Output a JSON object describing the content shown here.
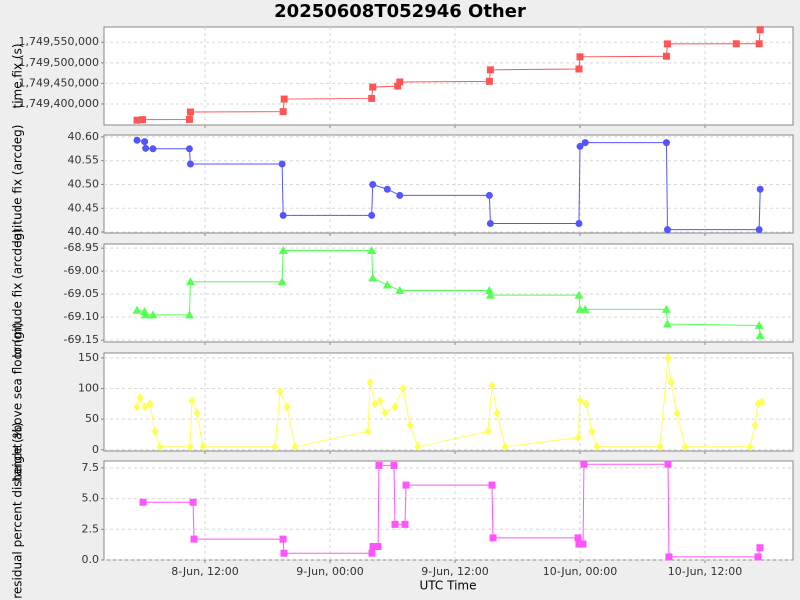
{
  "title": "20250608T052946 Other",
  "xlabel": "UTC Time",
  "xlim": [
    2.3,
    68.45
  ],
  "xticks": [
    {
      "value": 12,
      "label": "8-Jun, 12:00"
    },
    {
      "value": 24,
      "label": "9-Jun, 00:00"
    },
    {
      "value": 36,
      "label": "9-Jun, 12:00"
    },
    {
      "value": 48,
      "label": "10-Jun, 00:00"
    },
    {
      "value": 60,
      "label": "10-Jun, 12:00"
    }
  ],
  "grid": true,
  "chart_data": [
    {
      "type": "line",
      "ylabel": "time fix (s)",
      "marker": "square",
      "ylim": [
        1749349000,
        1749587000
      ],
      "yticks": [
        {
          "value": 1749400000,
          "label": "1,749,400,000"
        },
        {
          "value": 1749450000,
          "label": "1,749,450,000"
        },
        {
          "value": 1749500000,
          "label": "1,749,500,000"
        },
        {
          "value": 1749550000,
          "label": "1,749,550,000"
        }
      ],
      "x": [
        5.47,
        6.0,
        10.5,
        10.6,
        19.5,
        19.6,
        28.0,
        28.1,
        30.5,
        30.7,
        39.3,
        39.4,
        47.9,
        48.0,
        56.3,
        56.4,
        63.0,
        65.2,
        65.3
      ],
      "series": [
        {
          "name": "time fix",
          "color": "#ff5555",
          "values": [
            1749360586,
            1749362000,
            1749362500,
            1749380500,
            1749381500,
            1749412000,
            1749413500,
            1749441000,
            1749443500,
            1749453500,
            1749455000,
            1749483000,
            1749485000,
            1749514600,
            1749516000,
            1749546000,
            1749546300,
            1749546300,
            1749580500
          ]
        }
      ]
    },
    {
      "type": "line",
      "ylabel": "latitude fix (arcdeg)",
      "marker": "circle",
      "ylim": [
        40.398,
        40.604
      ],
      "yticks": [
        {
          "value": 40.4,
          "label": "40.40"
        },
        40.45,
        {
          "value": 40.5,
          "label": "40.50"
        },
        40.55,
        {
          "value": 40.6,
          "label": "40.60"
        }
      ],
      "x": [
        5.47,
        6.2,
        6.3,
        7.0,
        10.5,
        10.6,
        19.4,
        19.5,
        28.0,
        28.1,
        29.5,
        30.7,
        39.3,
        39.4,
        47.9,
        48.0,
        48.5,
        56.3,
        56.4,
        65.2,
        65.3
      ],
      "series": [
        {
          "name": "latitude fix",
          "color": "#5555ff",
          "values": [
            40.593,
            40.59,
            40.576,
            40.575,
            40.575,
            40.543,
            40.543,
            40.435,
            40.435,
            40.5,
            40.49,
            40.477,
            40.477,
            40.418,
            40.418,
            40.58,
            40.588,
            40.588,
            40.405,
            40.405,
            40.49
          ]
        }
      ]
    },
    {
      "type": "line",
      "ylabel": "longitude fix (arcdeg)",
      "marker": "triangle",
      "ylim": [
        -69.154,
        -68.941
      ],
      "yticks": [
        -69.15,
        {
          "value": -69.1,
          "label": "-69.10"
        },
        -69.05,
        {
          "value": -69.0,
          "label": "-69.00"
        },
        -68.95
      ],
      "x": [
        5.47,
        6.2,
        6.3,
        7.0,
        10.5,
        10.6,
        19.4,
        19.5,
        28.0,
        28.1,
        29.5,
        30.7,
        39.3,
        39.4,
        47.9,
        48.0,
        48.5,
        56.3,
        56.4,
        65.2,
        65.3
      ],
      "series": [
        {
          "name": "longitude fix",
          "color": "#55ff55",
          "values": [
            -69.085,
            -69.088,
            -69.095,
            -69.095,
            -69.095,
            -69.023,
            -69.023,
            -68.955,
            -68.955,
            -69.015,
            -69.03,
            -69.042,
            -69.042,
            -69.052,
            -69.052,
            -69.083,
            -69.083,
            -69.083,
            -69.115,
            -69.118,
            -69.14
          ]
        }
      ]
    },
    {
      "type": "line",
      "ylabel": "height above sea floor (m)",
      "marker": "diamond",
      "ylim": [
        -2,
        158
      ],
      "yticks": [
        0,
        50,
        100,
        150
      ],
      "x": [
        5.47,
        5.76,
        6.24,
        6.72,
        7.2,
        7.68,
        10.56,
        10.75,
        11.23,
        11.81,
        18.72,
        19.2,
        19.87,
        20.64,
        27.65,
        27.84,
        28.32,
        28.8,
        29.28,
        30.24,
        31.01,
        31.68,
        32.45,
        39.17,
        39.55,
        40.03,
        40.8,
        47.81,
        48.0,
        48.58,
        49.15,
        49.63,
        55.68,
        56.45,
        56.74,
        57.31,
        58.08,
        64.32,
        64.8,
        65.09,
        65.47
      ],
      "series": [
        {
          "name": "height above sea floor",
          "color": "#ffff55",
          "values": [
            70,
            85,
            70,
            75,
            30,
            5,
            5,
            80,
            60,
            5,
            5,
            95,
            70,
            5,
            30,
            110,
            75,
            80,
            60,
            70,
            100,
            40,
            5,
            30,
            105,
            60,
            5,
            20,
            80,
            75,
            30,
            5,
            5,
            150,
            110,
            60,
            5,
            5,
            40,
            75,
            78
          ]
        }
      ]
    },
    {
      "type": "line",
      "ylabel": "residual percent distance (%)",
      "marker": "square",
      "ylim": [
        0,
        8.06
      ],
      "yticks": [
        {
          "value": 0,
          "label": "0.0"
        },
        2.5,
        {
          "value": 5,
          "label": "5.0"
        },
        7.5
      ],
      "x": [
        6.05,
        10.85,
        10.94,
        19.49,
        19.58,
        28.03,
        28.13,
        28.61,
        28.7,
        30.14,
        30.24,
        31.2,
        31.3,
        39.55,
        39.65,
        47.81,
        47.9,
        48.29,
        48.38,
        56.45,
        56.54,
        65.09,
        65.28
      ],
      "series": [
        {
          "name": "residual percent distance",
          "color": "#ff55ff",
          "values": [
            4.7,
            4.7,
            1.7,
            1.7,
            0.55,
            0.55,
            1.1,
            1.1,
            7.7,
            7.7,
            2.9,
            2.9,
            6.1,
            6.1,
            1.8,
            1.8,
            1.3,
            1.3,
            7.8,
            7.8,
            0.25,
            0.25,
            1.0
          ]
        }
      ]
    }
  ]
}
